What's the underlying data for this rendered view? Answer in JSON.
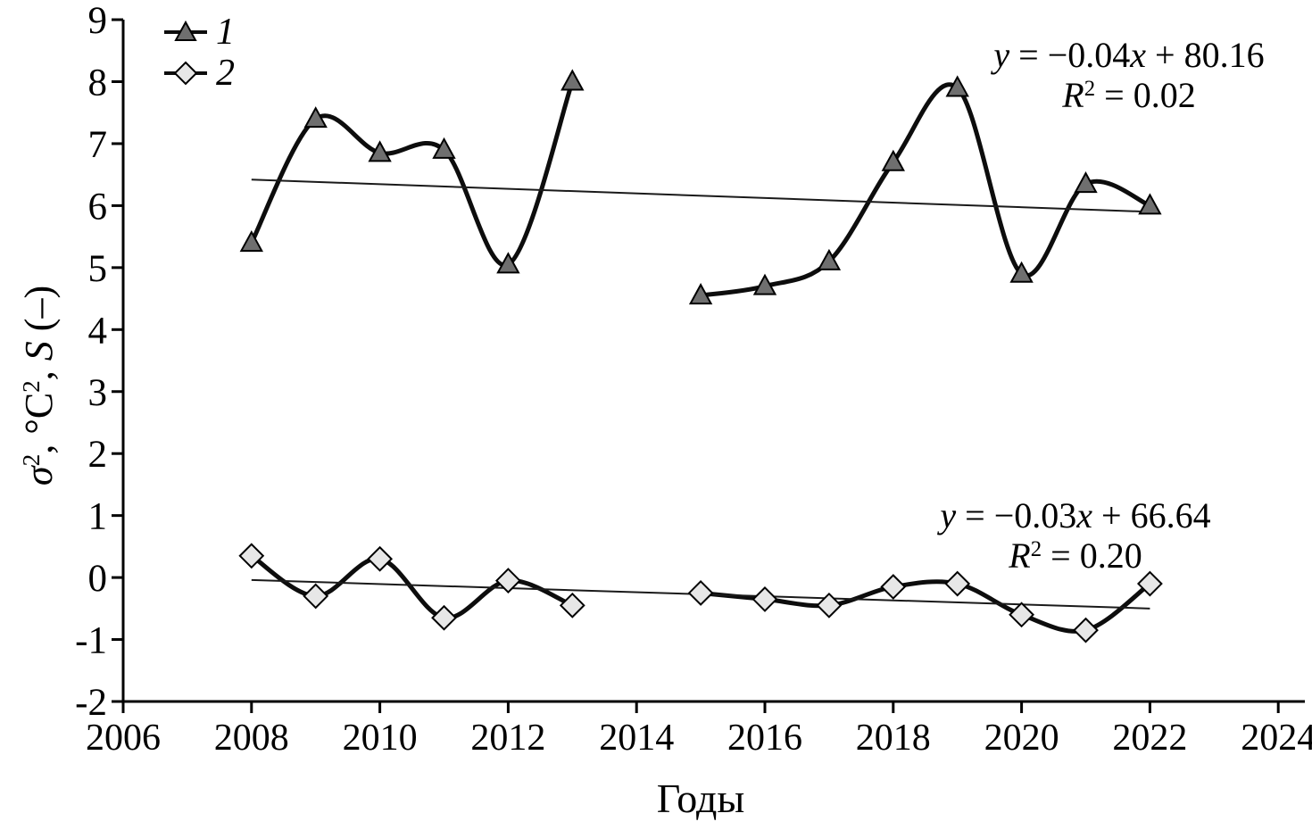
{
  "figure": {
    "background": "#ffffff"
  },
  "colors": {
    "axis": "#000000",
    "curve": "#0d0d0d",
    "trendline": "#1a1a1a",
    "series1_marker_fill": "#6f6f6f",
    "series2_marker_fill": "#e7e7e7",
    "marker_stroke": "#000000"
  },
  "legend": {
    "items": [
      {
        "label": "1",
        "marker": "filled-triangle"
      },
      {
        "label": "2",
        "marker": "light-diamond"
      }
    ]
  },
  "axes": {
    "xlabel": "Годы",
    "ylabel_parts": {
      "sigma": "σ",
      "sigma_sup": "2",
      "mid1": ", °C",
      "c_sup": "2",
      "mid2": ", ",
      "s_var": "S",
      "tail": " (–)"
    },
    "x_ticks": [
      "2006",
      "2008",
      "2010",
      "2012",
      "2014",
      "2016",
      "2018",
      "2020",
      "2022",
      "2024"
    ],
    "y_ticks": [
      "9",
      "8",
      "7",
      "6",
      "5",
      "4",
      "3",
      "2",
      "1",
      "0",
      "-1",
      "-2"
    ]
  },
  "equations": {
    "trend1": {
      "y_var": "y",
      "mid": " = −0.04",
      "x_var": "x",
      "tail": " + 80.16",
      "r_var": "R",
      "r_sup": "2",
      "r_tail": " = 0.02"
    },
    "trend2": {
      "y_var": "y",
      "mid": " = −0.03",
      "x_var": "x",
      "tail": " + 66.64",
      "r_var": "R",
      "r_sup": "2",
      "r_tail": " = 0.20"
    }
  },
  "chart_data": {
    "type": "line",
    "title": "",
    "xlabel": "Годы",
    "ylabel": "σ², °C², S (–)",
    "xlim": [
      2006,
      2024
    ],
    "ylim": [
      -2,
      9
    ],
    "x_tick_step": 2,
    "y_tick_step": 1,
    "grid": false,
    "legend_position": "top-left",
    "smooth_lines": true,
    "series": [
      {
        "name": "1",
        "marker": "filled-triangle",
        "segments": [
          {
            "years": [
              2008,
              2009,
              2010,
              2011,
              2012,
              2013
            ],
            "values": [
              5.4,
              7.4,
              6.85,
              6.9,
              5.05,
              8.0
            ]
          },
          {
            "years": [
              2015,
              2016,
              2017,
              2018,
              2019,
              2020,
              2021,
              2022
            ],
            "values": [
              4.55,
              4.7,
              5.1,
              6.7,
              7.9,
              4.9,
              6.35,
              6.0
            ]
          }
        ],
        "trendline": {
          "equation": "y = −0.04x + 80.16",
          "r2": 0.02,
          "start": {
            "year": 2008,
            "value": 6.42
          },
          "end": {
            "year": 2022,
            "value": 5.9
          }
        }
      },
      {
        "name": "2",
        "marker": "light-diamond",
        "segments": [
          {
            "years": [
              2008,
              2009,
              2010,
              2011,
              2012,
              2013
            ],
            "values": [
              0.35,
              -0.3,
              0.3,
              -0.65,
              -0.05,
              -0.45
            ]
          },
          {
            "years": [
              2015,
              2016,
              2017,
              2018,
              2019,
              2020,
              2021,
              2022
            ],
            "values": [
              -0.25,
              -0.35,
              -0.45,
              -0.15,
              -0.1,
              -0.6,
              -0.85,
              -0.1
            ]
          }
        ],
        "trendline": {
          "equation": "y = −0.03x + 66.64",
          "r2": 0.2,
          "start": {
            "year": 2008,
            "value": -0.04
          },
          "end": {
            "year": 2022,
            "value": -0.5
          }
        }
      }
    ]
  }
}
